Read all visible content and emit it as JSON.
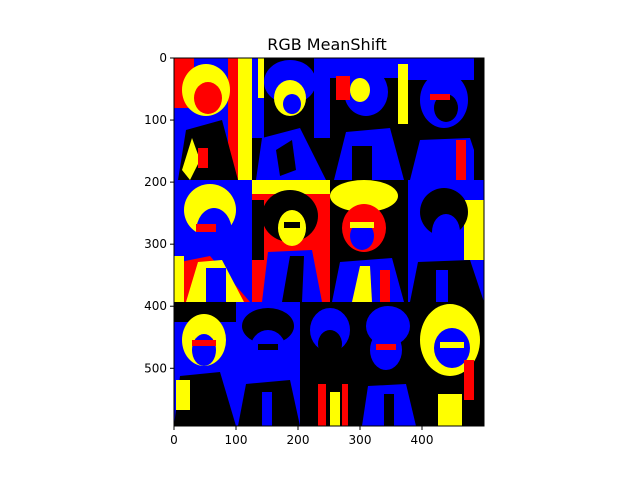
{
  "figure": {
    "title": "RGB MeanShift",
    "x_ticks": [
      "0",
      "100",
      "200",
      "300",
      "400"
    ],
    "y_ticks": [
      "0",
      "100",
      "200",
      "300",
      "400",
      "500"
    ],
    "image_extent": {
      "x": [
        0,
        500
      ],
      "y": [
        0,
        593
      ]
    },
    "palette": {
      "yellow": "#ffff00",
      "blue": "#0000ff",
      "red": "#ff0000",
      "black": "#000000"
    }
  }
}
